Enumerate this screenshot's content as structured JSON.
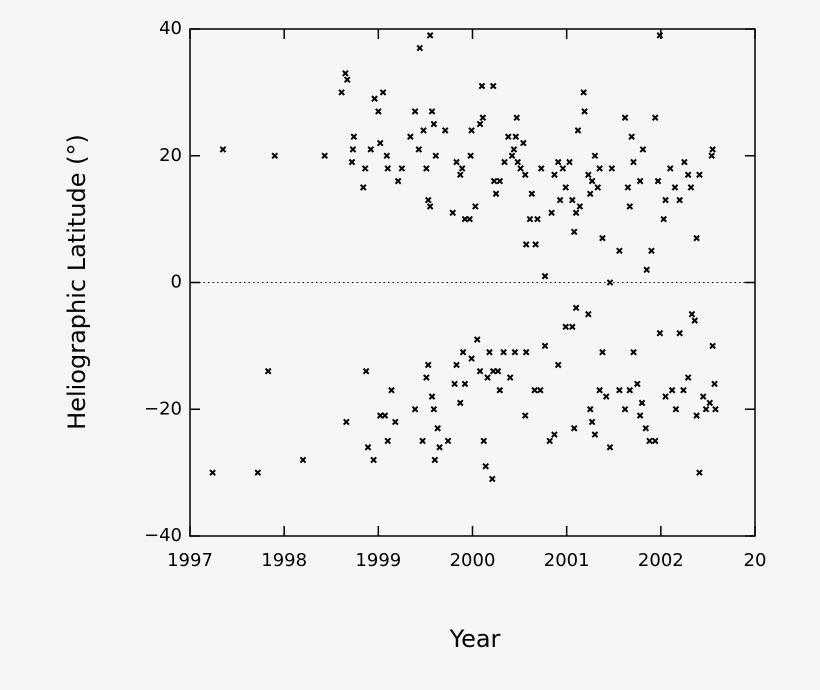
{
  "chart_data": {
    "type": "scatter",
    "x_label": "Year",
    "y_label": "Heliographic Latitude (°)",
    "xlim": [
      1997,
      2003
    ],
    "ylim": [
      -40,
      40
    ],
    "xticks": [
      1997,
      1998,
      1999,
      2000,
      2001,
      2002,
      {
        "value": 2003,
        "label": "20"
      }
    ],
    "yticks": [
      -40,
      -20,
      0,
      20,
      40
    ],
    "color": "#000000",
    "x": [
      1997.35,
      1997.9,
      1998.43,
      1998.61,
      1998.65,
      1998.67,
      1998.72,
      1998.73,
      1998.74,
      1998.84,
      1998.86,
      1998.92,
      1998.96,
      1999.0,
      1999.05,
      1999.02,
      1999.09,
      1999.1,
      1999.21,
      1999.25,
      1999.34,
      1999.39,
      1999.44,
      1999.43,
      1999.48,
      1999.51,
      1999.53,
      1999.55,
      1999.55,
      1999.57,
      1999.59,
      1999.61,
      1999.71,
      1999.79,
      1999.83,
      1999.87,
      1999.89,
      1999.92,
      1999.97,
      1999.98,
      1999.99,
      2000.03,
      2000.08,
      2000.11,
      2000.1,
      2000.22,
      2000.23,
      2000.25,
      2000.29,
      2000.34,
      2000.38,
      2000.42,
      2000.44,
      2000.46,
      2000.47,
      2000.48,
      2000.51,
      2000.54,
      2000.56,
      2000.57,
      2000.61,
      2000.63,
      2000.67,
      2000.69,
      2000.73,
      2000.77,
      2000.84,
      2000.87,
      2000.91,
      2000.93,
      2000.96,
      2000.99,
      2001.03,
      2001.06,
      2001.08,
      2001.1,
      2001.12,
      2001.14,
      2001.18,
      2001.19,
      2001.23,
      2001.25,
      2001.27,
      2001.3,
      2001.33,
      2001.35,
      2001.38,
      2001.46,
      2001.48,
      2001.56,
      2001.62,
      2001.65,
      2001.67,
      2001.69,
      2001.71,
      2001.78,
      2001.81,
      2001.85,
      2001.9,
      2001.94,
      2001.97,
      2001.99,
      2002.03,
      2002.05,
      2002.1,
      2002.15,
      2002.2,
      2002.25,
      2002.29,
      2002.32,
      2002.38,
      2002.41,
      2002.54,
      2002.55,
      1997.24,
      1997.72,
      1997.83,
      1998.2,
      1998.66,
      1998.87,
      1998.89,
      1998.95,
      1999.02,
      1999.07,
      1999.1,
      1999.14,
      1999.18,
      1999.39,
      1999.47,
      1999.51,
      1999.53,
      1999.57,
      1999.59,
      1999.6,
      1999.63,
      1999.65,
      1999.74,
      1999.81,
      1999.83,
      1999.87,
      1999.9,
      1999.92,
      1999.99,
      2000.05,
      2000.08,
      2000.12,
      2000.14,
      2000.16,
      2000.18,
      2000.21,
      2000.22,
      2000.27,
      2000.29,
      2000.33,
      2000.4,
      2000.45,
      2000.56,
      2000.57,
      2000.66,
      2000.72,
      2000.77,
      2000.82,
      2000.87,
      2000.91,
      2000.99,
      2001.06,
      2001.08,
      2001.1,
      2001.23,
      2001.25,
      2001.27,
      2001.3,
      2001.35,
      2001.38,
      2001.42,
      2001.46,
      2001.56,
      2001.62,
      2001.67,
      2001.71,
      2001.75,
      2001.78,
      2001.8,
      2001.84,
      2001.88,
      2001.94,
      2001.99,
      2002.05,
      2002.12,
      2002.16,
      2002.2,
      2002.24,
      2002.29,
      2002.33,
      2002.36,
      2002.38,
      2002.41,
      2002.45,
      2002.48,
      2002.52,
      2002.55,
      2002.57,
      2002.58
    ],
    "values": [
      21,
      20,
      20,
      30,
      33,
      32,
      19,
      21,
      23,
      15,
      18,
      21,
      29,
      27,
      30,
      22,
      20,
      18,
      16,
      18,
      23,
      27,
      37,
      21,
      24,
      18,
      13,
      12,
      39,
      27,
      25,
      20,
      24,
      11,
      19,
      17,
      18,
      10,
      10,
      20,
      24,
      12,
      25,
      26,
      31,
      31,
      16,
      14,
      16,
      19,
      23,
      20,
      21,
      23,
      26,
      19,
      18,
      22,
      17,
      6,
      10,
      14,
      6,
      10,
      18,
      1,
      11,
      17,
      19,
      13,
      18,
      15,
      19,
      13,
      8,
      11,
      24,
      12,
      30,
      27,
      17,
      14,
      16,
      20,
      15,
      18,
      7,
      0,
      18,
      5,
      26,
      15,
      12,
      23,
      19,
      16,
      21,
      2,
      5,
      26,
      16,
      39,
      10,
      13,
      18,
      15,
      13,
      19,
      17,
      15,
      7,
      17,
      20,
      21,
      -30,
      -30,
      -14,
      -28,
      -22,
      -14,
      -26,
      -28,
      -21,
      -21,
      -25,
      -17,
      -22,
      -20,
      -25,
      -15,
      -13,
      -18,
      -20,
      -28,
      -23,
      -26,
      -25,
      -16,
      -13,
      -19,
      -11,
      -16,
      -12,
      -9,
      -14,
      -25,
      -29,
      -15,
      -11,
      -31,
      -14,
      -14,
      -17,
      -11,
      -15,
      -11,
      -21,
      -11,
      -17,
      -17,
      -10,
      -25,
      -24,
      -13,
      -7,
      -7,
      -23,
      -4,
      -5,
      -20,
      -22,
      -24,
      -17,
      -11,
      -18,
      -26,
      -17,
      -20,
      -17,
      -11,
      -16,
      -21,
      -19,
      -23,
      -25,
      -25,
      -8,
      -18,
      -17,
      -20,
      -8,
      -17,
      -15,
      -5,
      -6,
      -21,
      -30,
      -18,
      -20,
      -19,
      -10,
      -16,
      -20
    ]
  }
}
